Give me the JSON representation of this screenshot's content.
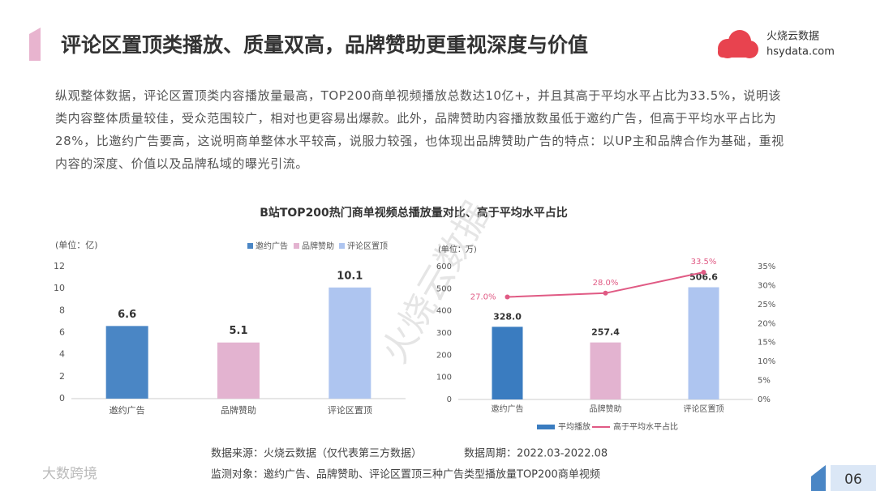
{
  "header": {
    "title": "评论区置顶类播放、质量双高，品牌赞助更重视深度与价值",
    "brand_name": "火烧云数据",
    "brand_url": "hsydata.com"
  },
  "paragraph": "纵观整体数据，评论区置顶类内容播放量最高，TOP200商单视频播放总数达10亿+，并且其高于平均水平占比为33.5%，说明该类内容整体质量较佳，受众范围较广，相对也更容易出爆款。此外，品牌赞助内容播放数虽低于邀约广告，但高于平均水平占比为28%，比邀约广告要高，这说明商单整体水平较高，说服力较强，也体现出品牌赞助广告的特点：以UP主和品牌合作为基础，重视内容的深度、价值以及品牌私域的曝光引流。",
  "charts_title": "B站TOP200热门商单视频总播放量对比、高于平均水平占比",
  "chart_data": [
    {
      "type": "bar",
      "y_label": "(单位：亿)",
      "categories": [
        "邀约广告",
        "品牌赞助",
        "评论区置顶"
      ],
      "values": [
        6.6,
        5.1,
        10.1
      ],
      "colors": [
        "#4a86c5",
        "#e3b3d0",
        "#aec5f0"
      ],
      "legend": true,
      "ylim": [
        0,
        12
      ],
      "yticks": [
        0,
        2,
        4,
        6,
        8,
        10,
        12
      ],
      "grid": false
    },
    {
      "type": "bar_line",
      "y_label": "(单位：万)",
      "categories": [
        "邀约广告",
        "品牌赞助",
        "评论区置顶"
      ],
      "series": [
        {
          "name": "平均播放",
          "color": "#3a7cc0",
          "colors": [
            "#3a7cc0",
            "#e3b3d0",
            "#aec5f0"
          ],
          "values": [
            328.0,
            257.4,
            506.6
          ],
          "value_labels": [
            "328.0",
            "257.4",
            "506.6"
          ]
        },
        {
          "name": "高于平均水平占比",
          "color": "#e05a84",
          "axis": "y2",
          "values": [
            27.0,
            28.0,
            33.5
          ],
          "value_labels": [
            "27.0%",
            "28.0%",
            "33.5%"
          ]
        }
      ],
      "ylim": [
        0,
        600
      ],
      "yticks": [
        0,
        100,
        200,
        300,
        400,
        500,
        600
      ],
      "y2lim": [
        0,
        35
      ],
      "y2ticks": [
        {
          "value": 0,
          "label": "0%"
        },
        {
          "value": 5,
          "label": "5%"
        },
        {
          "value": 10,
          "label": "10%"
        },
        {
          "value": 15,
          "label": "15%"
        },
        {
          "value": 20,
          "label": "20%"
        },
        {
          "value": 25,
          "label": "25%"
        },
        {
          "value": 30,
          "label": "30%"
        },
        {
          "value": 35,
          "label": "35%"
        }
      ],
      "grid": false
    }
  ],
  "footer": {
    "source": "数据来源：火烧云数据（仅代表第三方数据）",
    "period": "数据周期：2022.03-2022.08",
    "scope": "监测对象：邀约广告、品牌赞助、评论区置顶三种广告类型播放量TOP200商单视频",
    "page": "06",
    "logo": "大数跨境",
    "watermark": "火烧云数据"
  }
}
